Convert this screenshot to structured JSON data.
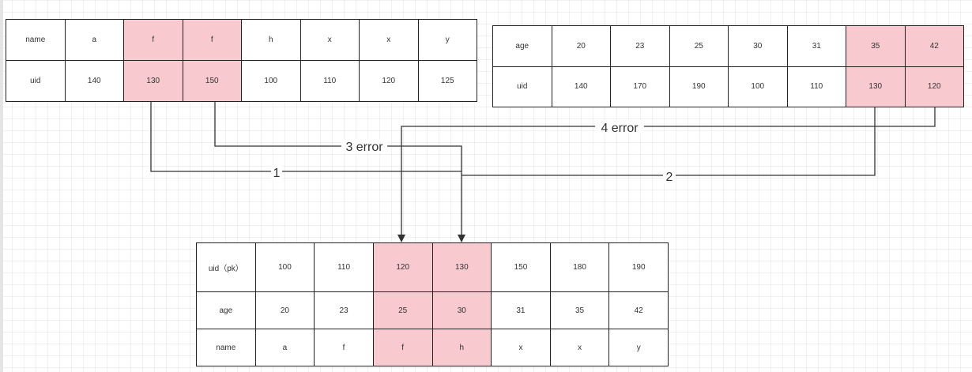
{
  "colors": {
    "highlight": "#f8c9cf",
    "border": "#222222",
    "text": "#333333",
    "background": "#ffffff"
  },
  "table_a": {
    "rows": [
      {
        "header": "name",
        "cells": [
          "a",
          "f",
          "f",
          "h",
          "x",
          "x",
          "y"
        ]
      },
      {
        "header": "uid",
        "cells": [
          "140",
          "130",
          "150",
          "100",
          "110",
          "120",
          "125"
        ]
      }
    ],
    "highlighted_columns": [
      1,
      2
    ]
  },
  "table_b": {
    "rows": [
      {
        "header": "age",
        "cells": [
          "20",
          "23",
          "25",
          "30",
          "31",
          "35",
          "42"
        ]
      },
      {
        "header": "uid",
        "cells": [
          "140",
          "170",
          "190",
          "100",
          "110",
          "130",
          "120"
        ]
      }
    ],
    "highlighted_columns": [
      5,
      6
    ]
  },
  "table_c": {
    "rows": [
      {
        "header": "uid（pk）",
        "cells": [
          "100",
          "110",
          "120",
          "130",
          "150",
          "180",
          "190"
        ]
      },
      {
        "header": "age",
        "cells": [
          "20",
          "23",
          "25",
          "30",
          "31",
          "35",
          "42"
        ]
      },
      {
        "header": "name",
        "cells": [
          "a",
          "f",
          "f",
          "h",
          "x",
          "x",
          "y"
        ]
      }
    ],
    "highlighted_columns": [
      2,
      3
    ]
  },
  "connectors": [
    {
      "id": "1",
      "label": "1"
    },
    {
      "id": "2",
      "label": "2"
    },
    {
      "id": "3",
      "label": "3 error"
    },
    {
      "id": "4",
      "label": "4 error"
    }
  ]
}
